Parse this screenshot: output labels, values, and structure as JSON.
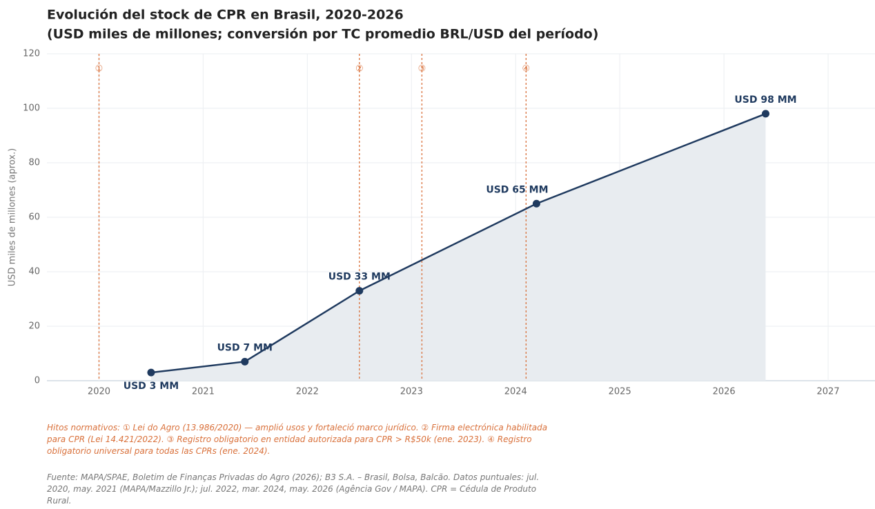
{
  "chart_data": {
    "type": "area-line",
    "title": "Evolución del stock de CPR en Brasil, 2020-2026",
    "subtitle": "(USD miles de millones; conversión por TC promedio BRL/USD del período)",
    "y_label": "USD miles de millones (aprox.)",
    "x": [
      2020.5,
      2021.4,
      2022.5,
      2024.2,
      2026.4
    ],
    "values": [
      3,
      7,
      33,
      65,
      98
    ],
    "value_labels": [
      "USD 3 MM",
      "USD 7 MM",
      "USD 33 MM",
      "USD 65 MM",
      "USD 98 MM"
    ],
    "color": "#1f3a5f",
    "area_color": "#e8ecf0",
    "milestone_color": "#d9703a",
    "milestones": [
      {
        "x": 2020.0,
        "label": "①"
      },
      {
        "x": 2022.5,
        "label": "②"
      },
      {
        "x": 2023.1,
        "label": "③"
      },
      {
        "x": 2024.1,
        "label": "④"
      }
    ],
    "xlim": [
      2019.5,
      2027.45
    ],
    "xticks": [
      2020,
      2021,
      2022,
      2023,
      2024,
      2025,
      2026,
      2027
    ],
    "ylim": [
      0,
      120
    ],
    "yticks": [
      0,
      20,
      40,
      60,
      80,
      100,
      120
    ],
    "grid": true,
    "note": "Hitos normativos:  ① Lei do Agro (13.986/2020) — amplió usos y fortaleció marco jurídico.  ② Firma electrónica habilitada para CPR (Lei 14.421/2022).  ③ Registro obligatorio en entidad autorizada para CPR > R$50k (ene. 2023).  ④ Registro obligatorio universal para todas las CPRs (ene. 2024).",
    "source": "Fuente: MAPA/SPAE, Boletim de Finanças Privadas do Agro (2026); B3 S.A. – Brasil, Bolsa, Balcão. Datos puntuales: jul. 2020, may. 2021 (MAPA/Mazzillo Jr.); jul. 2022, mar. 2024, may. 2026 (Agência Gov / MAPA). CPR = Cédula de Produto Rural."
  }
}
